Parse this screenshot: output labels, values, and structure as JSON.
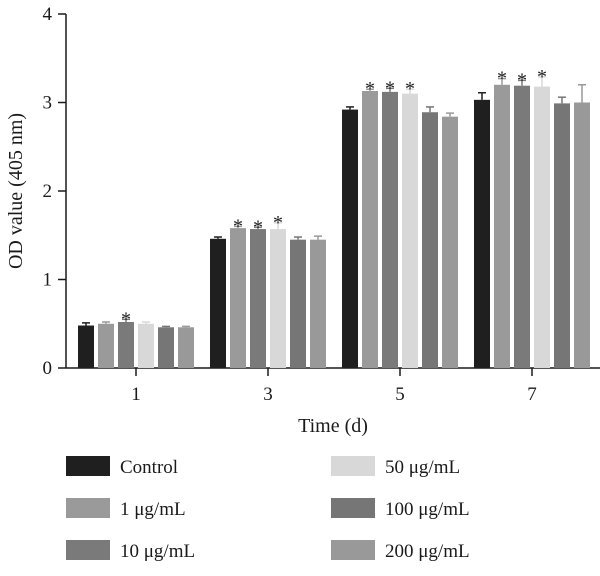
{
  "chart_data": {
    "type": "bar",
    "xlabel": "Time (d)",
    "ylabel": "OD value (405 nm)",
    "ylim": [
      0,
      4
    ],
    "yticks": [
      0,
      1,
      2,
      3,
      4
    ],
    "categories": [
      "1",
      "3",
      "5",
      "7"
    ],
    "series": [
      {
        "name": "Control",
        "color": "#1f1f1f",
        "values": [
          0.48,
          1.46,
          2.92,
          3.03
        ],
        "errors": [
          0.03,
          0.02,
          0.03,
          0.08
        ],
        "sig": [
          false,
          false,
          false,
          false
        ]
      },
      {
        "name": "1 μg/mL",
        "color": "#9a9a9a",
        "values": [
          0.5,
          1.58,
          3.13,
          3.2
        ],
        "errors": [
          0.02,
          0.02,
          0.02,
          0.07
        ],
        "sig": [
          false,
          true,
          true,
          true
        ]
      },
      {
        "name": "10 μg/mL",
        "color": "#7a7a7a",
        "values": [
          0.52,
          1.57,
          3.12,
          3.19
        ],
        "errors": [
          0.03,
          0.02,
          0.04,
          0.06
        ],
        "sig": [
          true,
          true,
          true,
          true
        ]
      },
      {
        "name": "50 μg/mL",
        "color": "#d8d8d8",
        "values": [
          0.5,
          1.57,
          3.1,
          3.18
        ],
        "errors": [
          0.02,
          0.07,
          0.05,
          0.11
        ],
        "sig": [
          false,
          true,
          true,
          true
        ]
      },
      {
        "name": "100 μg/mL",
        "color": "#767676",
        "values": [
          0.46,
          1.45,
          2.89,
          2.99
        ],
        "errors": [
          0.01,
          0.03,
          0.06,
          0.07
        ],
        "sig": [
          false,
          false,
          false,
          false
        ]
      },
      {
        "name": "200 μg/mL",
        "color": "#999999",
        "values": [
          0.46,
          1.45,
          2.84,
          3.0
        ],
        "errors": [
          0.01,
          0.04,
          0.04,
          0.2
        ],
        "sig": [
          false,
          false,
          false,
          false
        ]
      }
    ],
    "significance_marker": "*",
    "grid": false,
    "legend_position": "bottom"
  }
}
